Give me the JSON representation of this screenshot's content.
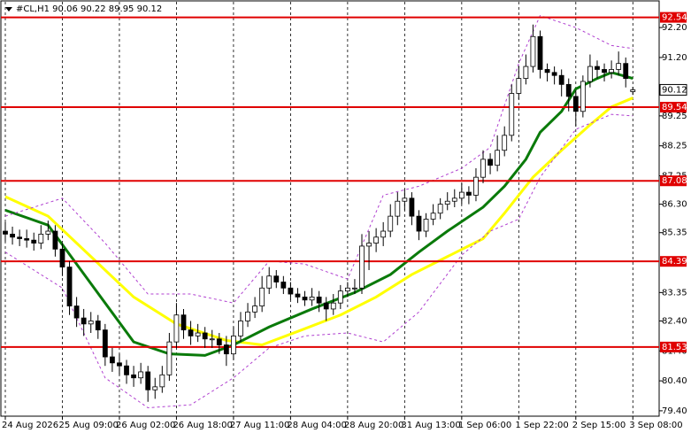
{
  "chart_data": {
    "type": "candlestick",
    "title": "#CL,H1  90.06 90.22 89.95 90.12",
    "categories": [
      "24 Aug 2026",
      null,
      null,
      null,
      null,
      null,
      null,
      null,
      "25 Aug 09:00",
      null,
      null,
      null,
      null,
      null,
      null,
      null,
      "26 Aug 02:00",
      null,
      null,
      null,
      null,
      null,
      null,
      null,
      "26 Aug 18:00",
      null,
      null,
      null,
      null,
      null,
      null,
      null,
      "27 Aug 11:00",
      null,
      null,
      null,
      null,
      null,
      null,
      null,
      "28 Aug 04:00",
      null,
      null,
      null,
      null,
      null,
      null,
      null,
      "28 Aug 20:00",
      null,
      null,
      null,
      null,
      null,
      null,
      null,
      "31 Aug 13:00",
      null,
      null,
      null,
      null,
      null,
      null,
      null,
      "1 Sep 06:00",
      null,
      null,
      null,
      null,
      null,
      null,
      null,
      "1 Sep 22:00",
      null,
      null,
      null,
      null,
      null,
      null,
      null,
      "2 Sep 15:00",
      null,
      null,
      null,
      null,
      null,
      null,
      null,
      "3 Sep 08:00"
    ],
    "open": [
      85.4,
      85.3,
      85.2,
      85.15,
      85.1,
      85.0,
      85.3,
      85.4,
      84.8,
      84.2,
      82.9,
      82.5,
      82.3,
      82.4,
      82.1,
      81.2,
      81.0,
      80.9,
      80.6,
      80.5,
      80.7,
      80.1,
      80.2,
      80.6,
      81.7,
      82.6,
      82.1,
      81.9,
      82.0,
      81.8,
      81.8,
      81.6,
      81.3,
      81.9,
      82.4,
      82.7,
      82.9,
      83.5,
      83.9,
      83.7,
      83.5,
      83.3,
      83.2,
      83.1,
      83.2,
      83.0,
      82.8,
      83.0,
      83.4,
      83.5,
      83.5,
      84.9,
      85.0,
      85.2,
      85.4,
      85.9,
      86.4,
      86.5,
      85.9,
      85.4,
      85.8,
      86.0,
      86.3,
      86.4,
      86.5,
      86.7,
      86.6,
      87.2,
      87.8,
      87.6,
      88.1,
      88.6,
      90.0,
      90.5,
      90.9,
      91.9,
      90.8,
      90.7,
      90.6,
      90.3,
      89.9,
      89.4,
      90.4,
      90.9,
      90.8,
      90.7,
      90.8,
      91.0,
      90.06
    ],
    "high": [
      85.7,
      85.55,
      85.45,
      85.45,
      85.35,
      85.6,
      85.75,
      85.6,
      85.0,
      84.4,
      83.2,
      82.8,
      82.7,
      82.6,
      82.3,
      81.5,
      81.3,
      81.1,
      80.9,
      81.0,
      80.9,
      80.5,
      80.9,
      82.0,
      83.0,
      82.8,
      82.4,
      82.3,
      82.2,
      82.1,
      82.0,
      81.9,
      82.2,
      82.7,
      83.0,
      83.2,
      83.9,
      84.2,
      84.1,
      83.9,
      83.7,
      83.5,
      83.4,
      83.5,
      83.4,
      83.2,
      83.3,
      83.6,
      83.7,
      83.8,
      85.3,
      85.4,
      85.5,
      85.7,
      86.3,
      86.7,
      86.8,
      86.7,
      86.1,
      86.0,
      86.3,
      86.5,
      86.7,
      86.8,
      87.0,
      86.9,
      87.5,
      88.1,
      88.0,
      88.6,
      88.9,
      90.3,
      90.9,
      91.3,
      92.3,
      92.1,
      91.0,
      90.9,
      90.8,
      90.5,
      90.1,
      90.6,
      91.3,
      91.1,
      91.0,
      91.1,
      91.4,
      91.2,
      90.22
    ],
    "low": [
      85.05,
      84.95,
      84.9,
      84.85,
      84.75,
      84.8,
      85.1,
      84.55,
      83.9,
      82.6,
      82.2,
      81.9,
      82.0,
      81.8,
      80.9,
      80.7,
      80.6,
      80.3,
      80.2,
      80.3,
      79.7,
      79.8,
      80.0,
      80.4,
      81.5,
      81.8,
      81.6,
      81.7,
      81.5,
      81.5,
      81.3,
      80.9,
      81.1,
      81.7,
      82.2,
      82.5,
      82.7,
      83.3,
      83.5,
      83.3,
      83.1,
      83.0,
      82.9,
      82.9,
      82.7,
      82.4,
      82.6,
      82.8,
      83.2,
      83.3,
      83.3,
      84.1,
      84.7,
      84.9,
      85.2,
      85.6,
      86.1,
      85.6,
      85.1,
      85.2,
      85.6,
      85.8,
      86.1,
      86.2,
      86.3,
      86.3,
      86.4,
      87.0,
      87.3,
      87.4,
      87.9,
      88.4,
      89.8,
      90.3,
      90.7,
      90.5,
      90.4,
      90.3,
      89.9,
      89.4,
      88.9,
      89.2,
      90.2,
      90.5,
      90.4,
      90.5,
      90.6,
      90.2,
      89.95
    ],
    "close": [
      85.3,
      85.2,
      85.15,
      85.1,
      85.0,
      85.3,
      85.4,
      84.8,
      84.2,
      82.9,
      82.5,
      82.3,
      82.4,
      82.1,
      81.2,
      81.0,
      80.9,
      80.6,
      80.5,
      80.7,
      80.1,
      80.2,
      80.6,
      81.7,
      82.6,
      82.1,
      81.9,
      82.0,
      81.8,
      81.8,
      81.6,
      81.3,
      81.9,
      82.4,
      82.7,
      82.9,
      83.5,
      83.9,
      83.7,
      83.5,
      83.3,
      83.2,
      83.1,
      83.2,
      83.0,
      82.8,
      83.0,
      83.4,
      83.5,
      83.5,
      84.9,
      85.0,
      85.2,
      85.4,
      85.9,
      86.4,
      86.5,
      85.9,
      85.4,
      85.8,
      86.0,
      86.3,
      86.4,
      86.5,
      86.7,
      86.6,
      87.2,
      87.8,
      87.6,
      88.1,
      88.6,
      90.0,
      90.5,
      90.9,
      91.9,
      90.8,
      90.7,
      90.6,
      90.3,
      89.9,
      89.4,
      90.4,
      90.9,
      90.8,
      90.7,
      90.8,
      91.0,
      90.5,
      90.12
    ],
    "overlays": [
      {
        "color": "#ffff00",
        "width": 3,
        "dashed": false,
        "x": [
          0,
          6,
          12,
          18,
          24,
          31,
          36,
          41,
          47,
          52,
          57,
          62,
          67,
          70,
          74,
          78,
          82,
          85,
          88
        ],
        "values": [
          86.55,
          85.9,
          84.55,
          83.2,
          82.3,
          81.75,
          81.6,
          82.05,
          82.6,
          83.2,
          83.95,
          84.55,
          85.15,
          86.0,
          87.2,
          88.1,
          88.95,
          89.55,
          89.85
        ]
      },
      {
        "color": "#0a7a0a",
        "width": 3,
        "dashed": false,
        "x": [
          0,
          6,
          12,
          18,
          23,
          28,
          32,
          37,
          43,
          49,
          54,
          58,
          62,
          67,
          70,
          73,
          75,
          78,
          80,
          83,
          85,
          88
        ],
        "values": [
          86.1,
          85.6,
          83.65,
          81.7,
          81.3,
          81.25,
          81.6,
          82.2,
          82.8,
          83.35,
          83.95,
          84.7,
          85.4,
          86.2,
          86.9,
          87.8,
          88.7,
          89.4,
          90.15,
          90.5,
          90.7,
          90.5
        ]
      },
      {
        "color": "#b040d0",
        "width": 1,
        "dashed": true,
        "x": [
          0,
          8,
          14,
          20,
          26,
          32,
          37,
          42,
          48,
          53,
          58,
          64,
          68,
          72,
          75,
          80,
          85,
          88
        ],
        "values": [
          85.9,
          86.5,
          85.0,
          83.3,
          83.3,
          83.0,
          84.4,
          84.3,
          83.8,
          86.6,
          86.9,
          87.5,
          88.2,
          91.0,
          92.6,
          92.2,
          91.6,
          91.5
        ]
      },
      {
        "color": "#b040d0",
        "width": 1,
        "dashed": true,
        "x": [
          0,
          8,
          14,
          20,
          26,
          32,
          37,
          42,
          48,
          53,
          58,
          64,
          68,
          72,
          75,
          80,
          85,
          88
        ],
        "values": [
          84.7,
          83.5,
          80.5,
          79.5,
          79.6,
          80.5,
          81.5,
          81.9,
          82.0,
          81.7,
          82.7,
          84.6,
          85.4,
          85.8,
          87.2,
          88.8,
          89.3,
          89.25
        ]
      }
    ],
    "levels": [
      {
        "value": 92.54,
        "label": "92.54"
      },
      {
        "value": 89.54,
        "label": "89.54"
      },
      {
        "value": 87.08,
        "label": "87.08"
      },
      {
        "value": 84.39,
        "label": "84.39"
      },
      {
        "value": 81.53,
        "label": "81.53"
      }
    ],
    "level_color": "#e00000",
    "current_price": {
      "value": 90.12,
      "label": "90.12"
    },
    "ylim": [
      79.22,
      93.12
    ],
    "yticks": [
      {
        "value": 92.2,
        "label": "92.20"
      },
      {
        "value": 91.2,
        "label": "91.20"
      },
      {
        "value": 89.25,
        "label": "89.25"
      },
      {
        "value": 88.25,
        "label": "88.25"
      },
      {
        "value": 87.25,
        "label": "87.25"
      },
      {
        "value": 86.3,
        "label": "86.30"
      },
      {
        "value": 85.35,
        "label": "85.35"
      },
      {
        "value": 83.35,
        "label": "83.35"
      },
      {
        "value": 82.4,
        "label": "82.40"
      },
      {
        "value": 81.4,
        "label": "81.40"
      },
      {
        "value": 80.4,
        "label": "80.40"
      },
      {
        "value": 79.4,
        "label": "79.40"
      }
    ],
    "grid": true
  }
}
